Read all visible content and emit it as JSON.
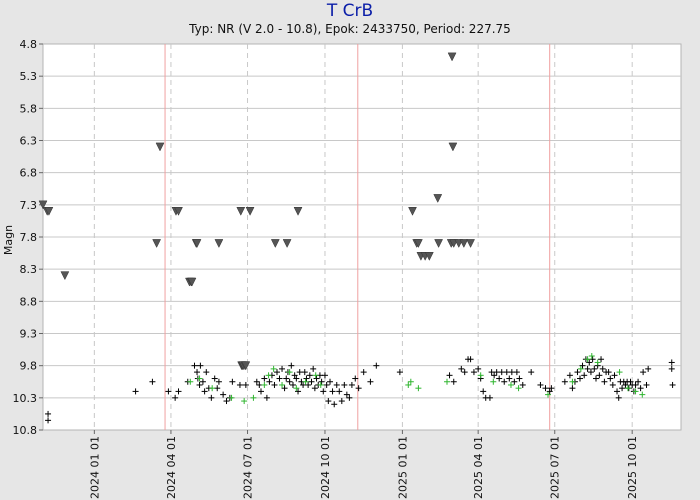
{
  "title": "T CrB",
  "subtitle": "Typ: NR (V 2.0 - 10.8), Epok: 2433750, Period: 227.75",
  "chart_data": {
    "type": "scatter",
    "title": "T CrB",
    "subtitle": "Typ: NR (V 2.0 - 10.8), Epok: 2433750, Period: 227.75",
    "ylabel": "Magn",
    "xlabel": "",
    "y_inverted": true,
    "ylim": [
      10.8,
      4.8
    ],
    "xlim": [
      "2023-11-01",
      "2025-11-28"
    ],
    "y_ticks": [
      4.8,
      5.3,
      5.8,
      6.3,
      6.8,
      7.3,
      7.8,
      8.3,
      8.8,
      9.3,
      9.8,
      10.3,
      10.8
    ],
    "y_tick_labels": [
      "4.8",
      "5.3",
      "5.8",
      "6.3",
      "6.8",
      "7.3",
      "7.8",
      "8.3",
      "8.8",
      "9.3",
      "9.8",
      "10.3",
      "10.8"
    ],
    "x_ticks": [
      "2024-01-01",
      "2024-04-01",
      "2024-07-01",
      "2024-10-01",
      "2025-01-01",
      "2025-04-01",
      "2025-07-01",
      "2025-10-01"
    ],
    "x_tick_labels": [
      "2024 01 01",
      "2024 04 01",
      "2024 07 01",
      "2024 10 01",
      "2025 01 01",
      "2025 04 01",
      "2025 07 01",
      "2025 10 01"
    ],
    "grid": true,
    "minimum_lines": [
      "2024-03-25",
      "2024-11-09",
      "2025-06-25"
    ],
    "colors": {
      "background": "#e6e6e6",
      "plot": "#ffffff",
      "title": "#0b1ea8",
      "upper_limit": "#555555",
      "visual": "#000000",
      "v_band": "#2fb52f",
      "grid": "#c8c8c8",
      "minimum_line": "#f0a0a0"
    },
    "series": [
      {
        "name": "",
        "marker": "triangle-down",
        "color": "#555555",
        "points": [
          [
            "2023-11-01",
            7.3
          ],
          [
            "2023-11-06",
            7.4
          ],
          [
            "2023-11-08",
            7.4
          ],
          [
            "2023-11-27",
            8.4
          ],
          [
            "2024-03-15",
            7.9
          ],
          [
            "2024-03-19",
            6.4
          ],
          [
            "2024-04-07",
            7.4
          ],
          [
            "2024-04-10",
            7.4
          ],
          [
            "2024-04-23",
            8.5
          ],
          [
            "2024-04-25",
            8.5
          ],
          [
            "2024-04-26",
            8.5
          ],
          [
            "2024-05-01",
            7.9
          ],
          [
            "2024-05-02",
            7.9
          ],
          [
            "2024-05-28",
            7.9
          ],
          [
            "2024-06-23",
            7.4
          ],
          [
            "2024-06-24",
            9.8
          ],
          [
            "2024-06-25",
            9.8
          ],
          [
            "2024-06-26",
            9.8
          ],
          [
            "2024-06-28",
            9.8
          ],
          [
            "2024-06-29",
            9.8
          ],
          [
            "2024-07-04",
            7.4
          ],
          [
            "2024-08-03",
            7.9
          ],
          [
            "2024-08-17",
            7.9
          ],
          [
            "2024-08-30",
            7.4
          ],
          [
            "2025-01-13",
            7.4
          ],
          [
            "2025-01-18",
            7.9
          ],
          [
            "2025-01-20",
            7.9
          ],
          [
            "2025-01-23",
            8.1
          ],
          [
            "2025-01-28",
            8.1
          ],
          [
            "2025-02-02",
            8.1
          ],
          [
            "2025-02-12",
            7.2
          ],
          [
            "2025-02-13",
            7.9
          ],
          [
            "2025-02-28",
            7.9
          ],
          [
            "2025-03-01",
            5.0
          ],
          [
            "2025-03-02",
            6.4
          ],
          [
            "2025-03-03",
            7.9
          ],
          [
            "2025-03-09",
            7.9
          ],
          [
            "2025-03-15",
            7.9
          ],
          [
            "2025-03-23",
            7.9
          ]
        ]
      },
      {
        "name": "",
        "marker": "plus",
        "color": "#000000",
        "points": [
          [
            "2023-11-07",
            10.55
          ],
          [
            "2023-11-07",
            10.65
          ],
          [
            "2024-02-19",
            10.2
          ],
          [
            "2024-03-10",
            10.05
          ],
          [
            "2024-03-29",
            10.2
          ],
          [
            "2024-04-06",
            10.3
          ],
          [
            "2024-04-10",
            10.2
          ],
          [
            "2024-04-21",
            10.05
          ],
          [
            "2024-04-29",
            9.8
          ],
          [
            "2024-05-02",
            9.9
          ],
          [
            "2024-05-03",
            10.0
          ],
          [
            "2024-05-05",
            10.1
          ],
          [
            "2024-05-06",
            9.8
          ],
          [
            "2024-05-09",
            10.05
          ],
          [
            "2024-05-11",
            10.2
          ],
          [
            "2024-05-13",
            9.9
          ],
          [
            "2024-05-16",
            10.15
          ],
          [
            "2024-05-19",
            10.3
          ],
          [
            "2024-05-23",
            10.0
          ],
          [
            "2024-05-26",
            10.15
          ],
          [
            "2024-05-28",
            10.05
          ],
          [
            "2024-06-02",
            10.25
          ],
          [
            "2024-06-06",
            10.35
          ],
          [
            "2024-06-10",
            10.3
          ],
          [
            "2024-06-13",
            10.05
          ],
          [
            "2024-06-22",
            10.1
          ],
          [
            "2024-06-29",
            10.1
          ],
          [
            "2024-07-12",
            10.05
          ],
          [
            "2024-07-15",
            10.1
          ],
          [
            "2024-07-17",
            10.2
          ],
          [
            "2024-07-21",
            10.0
          ],
          [
            "2024-07-24",
            10.3
          ],
          [
            "2024-07-27",
            10.05
          ],
          [
            "2024-07-30",
            9.95
          ],
          [
            "2024-08-02",
            10.1
          ],
          [
            "2024-08-05",
            9.9
          ],
          [
            "2024-08-08",
            10.0
          ],
          [
            "2024-08-11",
            9.85
          ],
          [
            "2024-08-14",
            10.15
          ],
          [
            "2024-08-16",
            10.0
          ],
          [
            "2024-08-18",
            9.9
          ],
          [
            "2024-08-20",
            10.05
          ],
          [
            "2024-08-22",
            9.8
          ],
          [
            "2024-08-24",
            10.1
          ],
          [
            "2024-08-26",
            9.95
          ],
          [
            "2024-08-28",
            10.0
          ],
          [
            "2024-08-30",
            10.2
          ],
          [
            "2024-09-01",
            9.9
          ],
          [
            "2024-09-03",
            10.05
          ],
          [
            "2024-09-05",
            10.1
          ],
          [
            "2024-09-07",
            9.9
          ],
          [
            "2024-09-09",
            10.0
          ],
          [
            "2024-09-11",
            10.1
          ],
          [
            "2024-09-13",
            9.95
          ],
          [
            "2024-09-15",
            10.05
          ],
          [
            "2024-09-17",
            9.85
          ],
          [
            "2024-09-19",
            10.15
          ],
          [
            "2024-09-21",
            10.0
          ],
          [
            "2024-09-23",
            10.1
          ],
          [
            "2024-09-25",
            9.95
          ],
          [
            "2024-09-27",
            10.05
          ],
          [
            "2024-09-29",
            10.2
          ],
          [
            "2024-10-01",
            9.95
          ],
          [
            "2024-10-03",
            10.1
          ],
          [
            "2024-10-05",
            10.35
          ],
          [
            "2024-10-07",
            10.05
          ],
          [
            "2024-10-10",
            10.2
          ],
          [
            "2024-10-12",
            10.4
          ],
          [
            "2024-10-15",
            10.1
          ],
          [
            "2024-10-18",
            10.2
          ],
          [
            "2024-10-21",
            10.35
          ],
          [
            "2024-10-24",
            10.1
          ],
          [
            "2024-10-27",
            10.25
          ],
          [
            "2024-10-30",
            10.3
          ],
          [
            "2024-11-02",
            10.1
          ],
          [
            "2024-11-06",
            10.0
          ],
          [
            "2024-11-10",
            10.15
          ],
          [
            "2024-11-16",
            9.9
          ],
          [
            "2024-11-24",
            10.05
          ],
          [
            "2024-12-01",
            9.8
          ],
          [
            "2024-12-29",
            9.9
          ],
          [
            "2025-02-26",
            9.95
          ],
          [
            "2025-03-03",
            10.05
          ],
          [
            "2025-03-12",
            9.85
          ],
          [
            "2025-03-16",
            9.9
          ],
          [
            "2025-03-20",
            9.7
          ],
          [
            "2025-03-23",
            9.7
          ],
          [
            "2025-03-27",
            9.9
          ],
          [
            "2025-04-01",
            9.85
          ],
          [
            "2025-04-04",
            10.0
          ],
          [
            "2025-04-07",
            10.2
          ],
          [
            "2025-04-10",
            10.3
          ],
          [
            "2025-04-15",
            10.3
          ],
          [
            "2025-04-17",
            9.9
          ],
          [
            "2025-04-20",
            9.95
          ],
          [
            "2025-04-23",
            9.9
          ],
          [
            "2025-04-26",
            10.0
          ],
          [
            "2025-04-29",
            9.9
          ],
          [
            "2025-05-02",
            10.05
          ],
          [
            "2025-05-05",
            9.9
          ],
          [
            "2025-05-08",
            10.0
          ],
          [
            "2025-05-11",
            9.9
          ],
          [
            "2025-05-14",
            10.05
          ],
          [
            "2025-05-17",
            9.9
          ],
          [
            "2025-05-20",
            10.0
          ],
          [
            "2025-05-24",
            10.1
          ],
          [
            "2025-06-03",
            9.9
          ],
          [
            "2025-06-14",
            10.1
          ],
          [
            "2025-06-20",
            10.15
          ],
          [
            "2025-06-25",
            10.2
          ],
          [
            "2025-06-27",
            10.15
          ],
          [
            "2025-07-13",
            10.05
          ],
          [
            "2025-07-19",
            9.95
          ],
          [
            "2025-07-22",
            10.15
          ],
          [
            "2025-07-25",
            10.05
          ],
          [
            "2025-07-28",
            9.9
          ],
          [
            "2025-07-31",
            10.0
          ],
          [
            "2025-08-03",
            9.8
          ],
          [
            "2025-08-05",
            9.95
          ],
          [
            "2025-08-07",
            9.7
          ],
          [
            "2025-08-09",
            9.85
          ],
          [
            "2025-08-11",
            9.75
          ],
          [
            "2025-08-13",
            9.9
          ],
          [
            "2025-08-15",
            9.7
          ],
          [
            "2025-08-17",
            9.85
          ],
          [
            "2025-08-19",
            10.0
          ],
          [
            "2025-08-21",
            9.8
          ],
          [
            "2025-08-23",
            9.95
          ],
          [
            "2025-08-25",
            9.7
          ],
          [
            "2025-08-27",
            9.85
          ],
          [
            "2025-08-29",
            10.05
          ],
          [
            "2025-08-31",
            9.9
          ],
          [
            "2025-09-03",
            9.9
          ],
          [
            "2025-09-05",
            10.0
          ],
          [
            "2025-09-08",
            10.1
          ],
          [
            "2025-09-10",
            9.95
          ],
          [
            "2025-09-13",
            10.2
          ],
          [
            "2025-09-15",
            10.3
          ],
          [
            "2025-09-17",
            10.05
          ],
          [
            "2025-09-19",
            10.15
          ],
          [
            "2025-09-21",
            10.05
          ],
          [
            "2025-09-23",
            10.1
          ],
          [
            "2025-09-25",
            10.05
          ],
          [
            "2025-09-27",
            10.15
          ],
          [
            "2025-09-29",
            10.05
          ],
          [
            "2025-10-01",
            10.1
          ],
          [
            "2025-10-03",
            10.2
          ],
          [
            "2025-10-05",
            10.1
          ],
          [
            "2025-10-08",
            10.05
          ],
          [
            "2025-10-11",
            10.15
          ],
          [
            "2025-10-14",
            9.9
          ],
          [
            "2025-10-18",
            10.1
          ],
          [
            "2025-10-20",
            9.85
          ],
          [
            "2025-11-17",
            9.85
          ],
          [
            "2025-11-17",
            9.75
          ],
          [
            "2025-11-18",
            10.1
          ]
        ]
      },
      {
        "name": "",
        "marker": "plus",
        "color": "#2fb52f",
        "points": [
          [
            "2024-04-24",
            10.05
          ],
          [
            "2024-05-05",
            10.0
          ],
          [
            "2024-05-20",
            10.15
          ],
          [
            "2024-06-12",
            10.3
          ],
          [
            "2024-06-27",
            10.35
          ],
          [
            "2024-07-08",
            10.3
          ],
          [
            "2024-07-21",
            10.1
          ],
          [
            "2024-07-26",
            9.95
          ],
          [
            "2024-08-01",
            9.85
          ],
          [
            "2024-08-11",
            10.1
          ],
          [
            "2024-08-20",
            9.9
          ],
          [
            "2024-08-28",
            10.15
          ],
          [
            "2024-09-08",
            10.05
          ],
          [
            "2024-09-20",
            9.95
          ],
          [
            "2024-09-26",
            10.1
          ],
          [
            "2025-01-08",
            10.1
          ],
          [
            "2025-01-11",
            10.05
          ],
          [
            "2025-01-20",
            10.15
          ],
          [
            "2025-02-23",
            10.05
          ],
          [
            "2025-04-04",
            9.95
          ],
          [
            "2025-04-19",
            10.05
          ],
          [
            "2025-05-10",
            10.1
          ],
          [
            "2025-05-19",
            10.15
          ],
          [
            "2025-06-23",
            10.25
          ],
          [
            "2025-07-22",
            10.05
          ],
          [
            "2025-08-01",
            9.85
          ],
          [
            "2025-08-09",
            9.7
          ],
          [
            "2025-08-14",
            9.65
          ],
          [
            "2025-08-21",
            9.75
          ],
          [
            "2025-09-16",
            9.9
          ],
          [
            "2025-09-26",
            10.15
          ],
          [
            "2025-10-05",
            10.2
          ],
          [
            "2025-10-13",
            10.25
          ]
        ]
      }
    ]
  }
}
